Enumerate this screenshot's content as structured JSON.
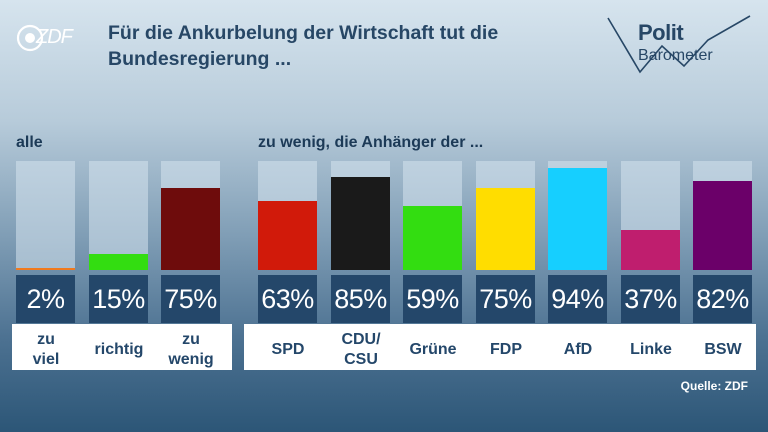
{
  "header": {
    "logo": "ZDF",
    "title": "Für die Ankurbelung der Wirtschaft tut die Bundesregierung ...",
    "badge_line1": "Polit",
    "badge_line2": "Barometer"
  },
  "section_labels": {
    "all": "alle",
    "supporters": "zu wenig, die Anhänger der ..."
  },
  "source": "Quelle: ZDF",
  "chart_data": {
    "type": "bar",
    "ylim": [
      0,
      100
    ],
    "groups": [
      {
        "label": "alle",
        "bars": [
          {
            "category": "zu viel",
            "lines": [
              "zu",
              "viel"
            ],
            "value": 2,
            "display": "2%",
            "color": "#f07a1e"
          },
          {
            "category": "richtig",
            "lines": [
              "richtig"
            ],
            "value": 15,
            "display": "15%",
            "color": "#33dd11"
          },
          {
            "category": "zu wenig",
            "lines": [
              "zu",
              "wenig"
            ],
            "value": 75,
            "display": "75%",
            "color": "#6e0c0c"
          }
        ]
      },
      {
        "label": "zu wenig, die Anhänger der ...",
        "bars": [
          {
            "category": "SPD",
            "lines": [
              "SPD"
            ],
            "value": 63,
            "display": "63%",
            "color": "#d11a0a"
          },
          {
            "category": "CDU/CSU",
            "lines": [
              "CDU/",
              "CSU"
            ],
            "value": 85,
            "display": "85%",
            "color": "#1a1a1a"
          },
          {
            "category": "Grüne",
            "lines": [
              "Grüne"
            ],
            "value": 59,
            "display": "59%",
            "color": "#33dd11"
          },
          {
            "category": "FDP",
            "lines": [
              "FDP"
            ],
            "value": 75,
            "display": "75%",
            "color": "#ffdd00"
          },
          {
            "category": "AfD",
            "lines": [
              "AfD"
            ],
            "value": 94,
            "display": "94%",
            "color": "#16cfff"
          },
          {
            "category": "Linke",
            "lines": [
              "Linke"
            ],
            "value": 37,
            "display": "37%",
            "color": "#bf1e6e"
          },
          {
            "category": "BSW",
            "lines": [
              "BSW"
            ],
            "value": 82,
            "display": "82%",
            "color": "#6b0069"
          }
        ]
      }
    ]
  }
}
